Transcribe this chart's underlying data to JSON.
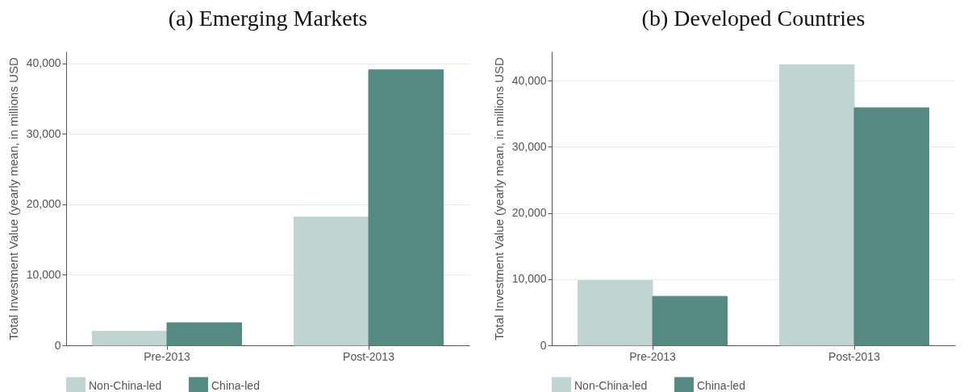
{
  "chart_data": [
    {
      "type": "bar",
      "title": "(a) Emerging Markets",
      "ylabel": "Total Investment Value (yearly mean, in millions USD",
      "categories": [
        "Pre-2013",
        "Post-2013"
      ],
      "series": [
        {
          "name": "Non-China-led",
          "color": "#c0d4d1",
          "values": [
            2000,
            18200
          ]
        },
        {
          "name": "China-led",
          "color": "#558a82",
          "values": [
            3200,
            39100
          ]
        }
      ],
      "ylim": [
        0,
        41700
      ],
      "yticks": [
        0,
        {
          "value": 10000,
          "label": "10,000"
        },
        {
          "value": 20000,
          "label": "20,000"
        },
        {
          "value": 30000,
          "label": "30,000"
        },
        {
          "value": 40000,
          "label": "40,000"
        }
      ],
      "grid": "y",
      "legend": "bottom"
    },
    {
      "type": "bar",
      "title": "(b) Developed Countries",
      "ylabel": "Total Investment Value (yearly mean, in millions USD",
      "categories": [
        "Pre-2013",
        "Post-2013"
      ],
      "series": [
        {
          "name": "Non-China-led",
          "color": "#c0d4d1",
          "values": [
            9800,
            42400
          ]
        },
        {
          "name": "China-led",
          "color": "#558a82",
          "values": [
            7400,
            35900
          ]
        }
      ],
      "ylim": [
        0,
        44400
      ],
      "yticks": [
        0,
        {
          "value": 10000,
          "label": "10,000"
        },
        {
          "value": 20000,
          "label": "20,000"
        },
        {
          "value": 30000,
          "label": "30,000"
        },
        {
          "value": 40000,
          "label": "40,000"
        }
      ],
      "grid": "y",
      "legend": "bottom"
    }
  ]
}
